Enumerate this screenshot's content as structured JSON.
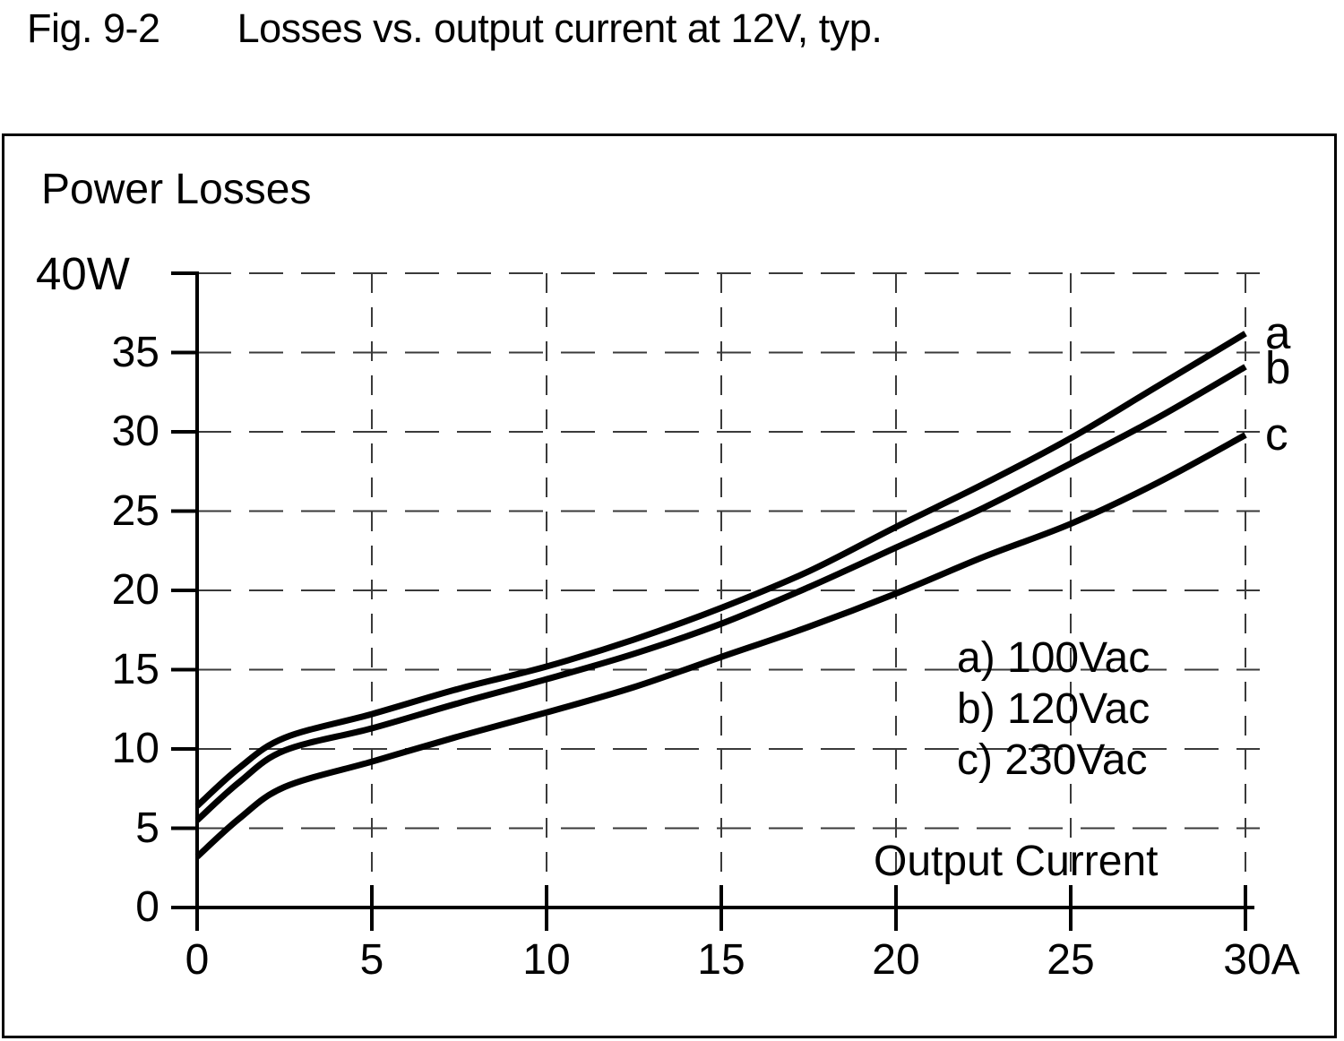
{
  "figure": {
    "title_prefix": "Fig. 9-2",
    "title_main": "Losses vs. output current at 12V, typ."
  },
  "chart": {
    "y_axis_title": "Power Losses",
    "y_max_label": "40W",
    "y_ticks": [
      "35",
      "30",
      "25",
      "20",
      "15",
      "10",
      "5",
      "0"
    ],
    "x_ticks": [
      "0",
      "5",
      "10",
      "15",
      "20",
      "25",
      "30A"
    ],
    "x_axis_title": "Output Current",
    "legend": [
      "a) 100Vac",
      "b) 120Vac",
      "c) 230Vac"
    ]
  },
  "chart_data": {
    "type": "line",
    "title": "Fig. 9-2  Losses vs. output current at 12V, typ.",
    "xlabel": "Output Current",
    "ylabel": "Power Losses",
    "x_unit": "A",
    "y_unit": "W",
    "xlim": [
      0,
      30
    ],
    "ylim": [
      0,
      40
    ],
    "x_tick_values": [
      0,
      5,
      10,
      15,
      20,
      25,
      30
    ],
    "y_tick_values": [
      0,
      5,
      10,
      15,
      20,
      25,
      30,
      35,
      40
    ],
    "grid": "dashed",
    "legend_position": "inside lower right",
    "x": [
      0,
      1.2,
      2.5,
      5,
      7.5,
      10,
      12.5,
      15,
      17.5,
      20,
      22.5,
      25,
      27.5,
      30
    ],
    "series": [
      {
        "name": "a) 100Vac",
        "label": "a",
        "values": [
          6.4,
          8.8,
          10.7,
          12.2,
          13.8,
          15.2,
          16.9,
          18.9,
          21.2,
          24.0,
          26.7,
          29.6,
          32.9,
          36.2
        ]
      },
      {
        "name": "b) 120Vac",
        "label": "b",
        "values": [
          5.5,
          7.9,
          9.9,
          11.3,
          12.9,
          14.4,
          16.0,
          17.9,
          20.2,
          22.7,
          25.2,
          28.0,
          30.9,
          34.1
        ]
      },
      {
        "name": "c) 230Vac",
        "label": "c",
        "values": [
          3.2,
          5.6,
          7.6,
          9.2,
          10.8,
          12.3,
          13.9,
          15.8,
          17.7,
          19.8,
          22.1,
          24.2,
          26.8,
          29.8
        ]
      }
    ],
    "line_color": "#000000"
  }
}
